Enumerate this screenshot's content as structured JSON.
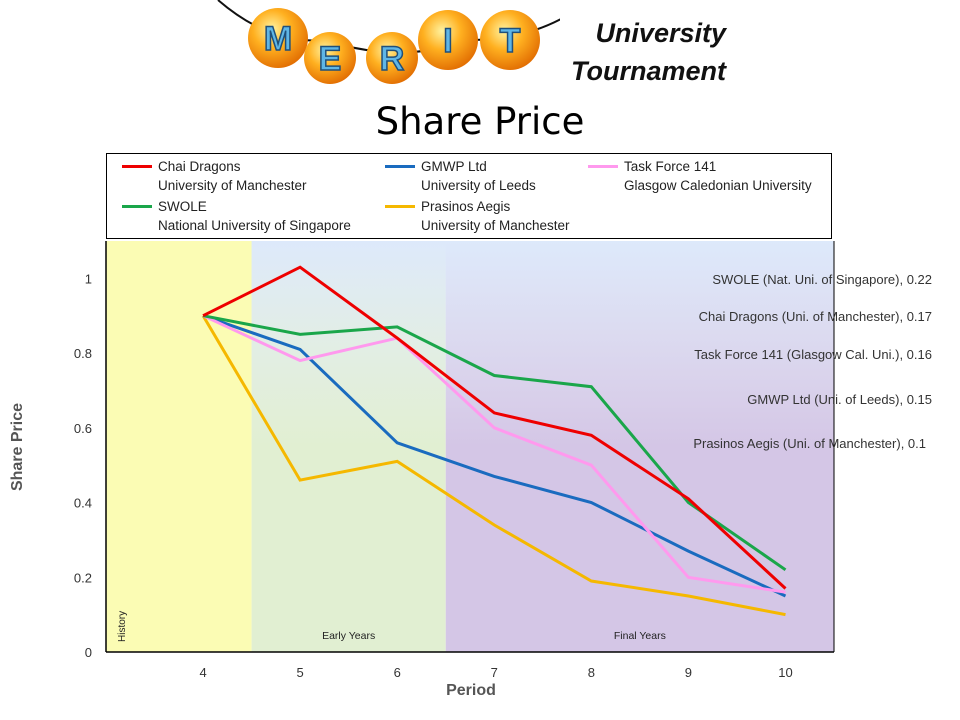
{
  "header": {
    "brand_letters": [
      "M",
      "E",
      "R",
      "I",
      "T"
    ],
    "subtitle_line1": "University",
    "subtitle_line2": "Tournament"
  },
  "colors": {
    "chai_dragons": "#ee0000",
    "gmwp": "#1a6bbf",
    "task_force": "#ff99ee",
    "swole": "#1aa64a",
    "prasinos": "#f5b800",
    "history_band": "#fbfcb4",
    "early_band": "#e1efd2",
    "final_band": "#d4c6e6"
  },
  "chart_data": {
    "type": "line",
    "title": "Share Price",
    "xlabel": "Period",
    "ylabel": "Share Price",
    "x": [
      4,
      5,
      6,
      7,
      8,
      9,
      10
    ],
    "xlim": [
      3,
      10.5
    ],
    "ylim": [
      0,
      1.1
    ],
    "yticks": [
      0,
      0.2,
      0.4,
      0.6,
      0.8,
      1
    ],
    "series": [
      {
        "key": "chai_dragons",
        "name": "Chai Dragons",
        "university": "University of Manchester",
        "values": [
          0.9,
          1.03,
          0.84,
          0.64,
          0.58,
          0.41,
          0.17
        ]
      },
      {
        "key": "gmwp",
        "name": "GMWP Ltd",
        "university": "University of Leeds",
        "values": [
          0.9,
          0.81,
          0.56,
          0.47,
          0.4,
          0.27,
          0.15
        ]
      },
      {
        "key": "task_force",
        "name": "Task Force 141",
        "university": "Glasgow Caledonian University",
        "values": [
          0.9,
          0.78,
          0.84,
          0.6,
          0.5,
          0.2,
          0.16
        ]
      },
      {
        "key": "swole",
        "name": "SWOLE",
        "university": "National University of Singapore",
        "values": [
          0.9,
          0.85,
          0.87,
          0.74,
          0.71,
          0.4,
          0.22
        ]
      },
      {
        "key": "prasinos",
        "name": "Prasinos Aegis",
        "university": "University of Manchester",
        "values": [
          0.9,
          0.46,
          0.51,
          0.34,
          0.19,
          0.15,
          0.1
        ]
      }
    ],
    "regions": [
      {
        "label": "History",
        "from": 3,
        "to": 4.5,
        "color_key": "history_band"
      },
      {
        "label": "Early Years",
        "from": 4.5,
        "to": 6.5,
        "color_key": "early_band"
      },
      {
        "label": "Final Years",
        "from": 6.5,
        "to": 10.5,
        "color_key": "final_band"
      }
    ],
    "annotations": [
      {
        "key": "swole",
        "text": "SWOLE (Nat. Uni. of Singapore), 0.22"
      },
      {
        "key": "chai_dragons",
        "text": "Chai Dragons (Uni. of Manchester), 0.17"
      },
      {
        "key": "task_force",
        "text": "Task Force 141 (Glasgow Cal. Uni.), 0.16"
      },
      {
        "key": "gmwp",
        "text": "GMWP Ltd (Uni. of Leeds), 0.15"
      },
      {
        "key": "prasinos",
        "text": "Prasinos Aegis (Uni. of Manchester), 0.1"
      }
    ]
  }
}
